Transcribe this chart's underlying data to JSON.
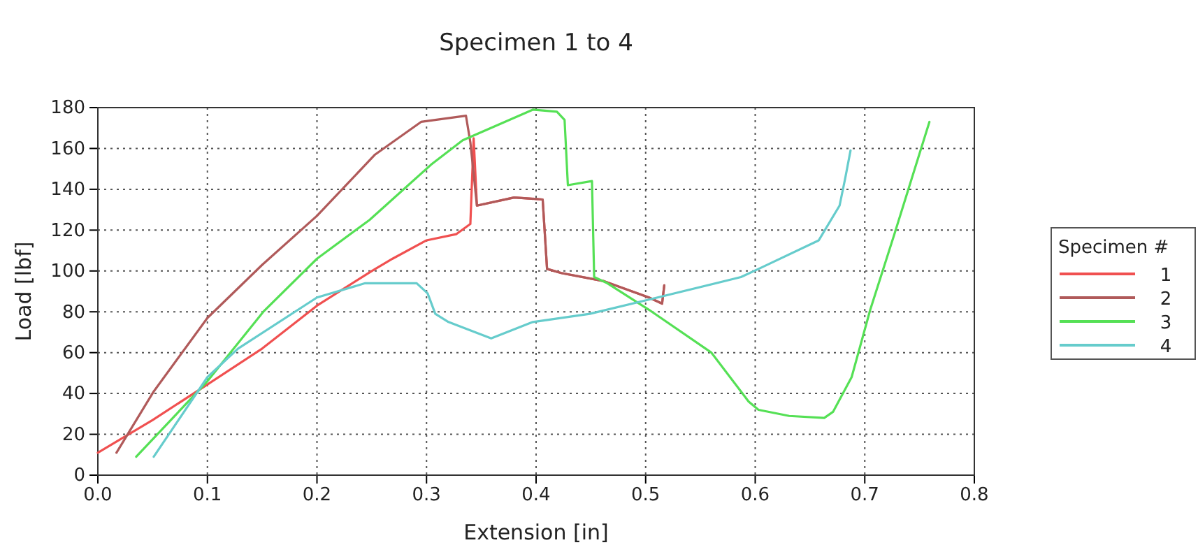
{
  "chart_data": {
    "type": "line",
    "title": "Specimen 1 to 4",
    "xlabel": "Extension [in]",
    "ylabel": "Load [lbf]",
    "legend_title": "Specimen #",
    "legend": "right",
    "grid": true,
    "line_style": "solid",
    "xlim": [
      0,
      0.8
    ],
    "xticks": [
      {
        "value": 0,
        "label": "0.0"
      },
      0.1,
      0.2,
      0.3,
      0.4,
      0.5,
      0.6,
      0.7,
      0.8
    ],
    "ylim": [
      0,
      180
    ],
    "yticks": [
      0,
      20,
      40,
      60,
      80,
      100,
      120,
      140,
      160,
      180
    ],
    "series": [
      {
        "name": "1",
        "color": "#f05050",
        "x": [
          0,
          0.05,
          0.096,
          0.15,
          0.2,
          0.25,
          0.269,
          0.3,
          0.327,
          0.34,
          0.343,
          0.346,
          0.38,
          0.406,
          0.41,
          0.423,
          0.462,
          0.503,
          0.515,
          0.517
        ],
        "values": [
          11,
          27,
          43,
          62,
          83,
          100,
          106,
          115,
          118,
          123,
          165,
          132,
          136,
          135,
          101,
          99,
          95,
          87,
          84,
          93
        ]
      },
      {
        "name": "2",
        "color": "#b05a5a",
        "x": [
          0.017,
          0.051,
          0.1,
          0.15,
          0.2,
          0.253,
          0.295,
          0.336,
          0.34,
          0.346,
          0.38,
          0.406,
          0.41,
          0.423,
          0.462,
          0.503,
          0.515,
          0.517
        ],
        "values": [
          11,
          41,
          77,
          103,
          127,
          157,
          173,
          176,
          163,
          132,
          136,
          135,
          101,
          99,
          95,
          87,
          84,
          93
        ]
      },
      {
        "name": "3",
        "color": "#55e055",
        "x": [
          0.035,
          0.1,
          0.151,
          0.2,
          0.248,
          0.304,
          0.333,
          0.397,
          0.419,
          0.426,
          0.429,
          0.451,
          0.453,
          0.465,
          0.503,
          0.56,
          0.587,
          0.594,
          0.603,
          0.631,
          0.663,
          0.671,
          0.688,
          0.705,
          0.727,
          0.759
        ],
        "values": [
          9,
          46,
          80,
          106,
          125,
          152,
          164,
          179,
          178,
          174,
          142,
          144,
          97,
          94,
          81,
          60,
          41,
          36,
          32,
          29,
          28,
          31,
          48,
          81,
          118,
          173
        ]
      },
      {
        "name": "4",
        "color": "#66cccc",
        "x": [
          0.051,
          0.1,
          0.128,
          0.2,
          0.244,
          0.291,
          0.301,
          0.308,
          0.32,
          0.359,
          0.397,
          0.449,
          0.503,
          0.587,
          0.603,
          0.658,
          0.677,
          0.682,
          0.687
        ],
        "values": [
          9,
          48,
          62,
          87,
          94,
          94,
          89,
          79,
          75,
          67,
          75,
          79,
          86,
          97,
          101,
          115,
          132,
          145,
          159
        ]
      }
    ]
  }
}
